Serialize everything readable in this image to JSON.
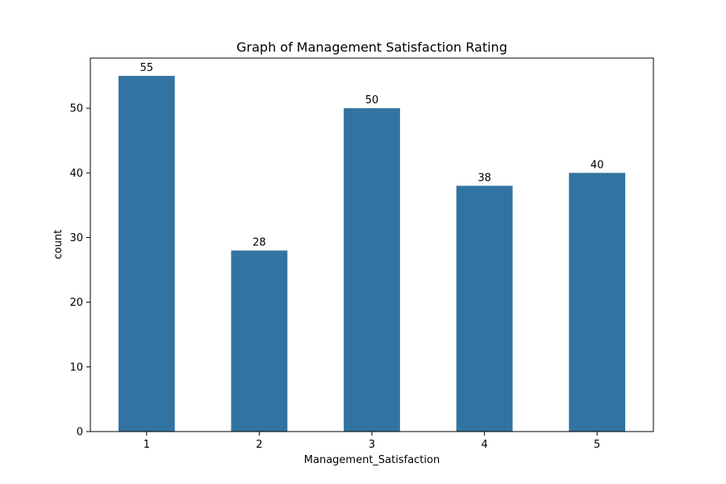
{
  "chart_data": {
    "type": "bar",
    "title": "Graph of Management Satisfaction Rating",
    "xlabel": "Management_Satisfaction",
    "ylabel": "count",
    "categories": [
      "1",
      "2",
      "3",
      "4",
      "5"
    ],
    "values": [
      55,
      28,
      50,
      38,
      40
    ],
    "data_labels": [
      "55",
      "28",
      "50",
      "38",
      "40"
    ],
    "ylim": [
      0,
      57.75
    ],
    "yticks": [
      0,
      10,
      20,
      30,
      40,
      50
    ],
    "bar_color": "#3274a1",
    "grid": false,
    "legend": "none"
  }
}
